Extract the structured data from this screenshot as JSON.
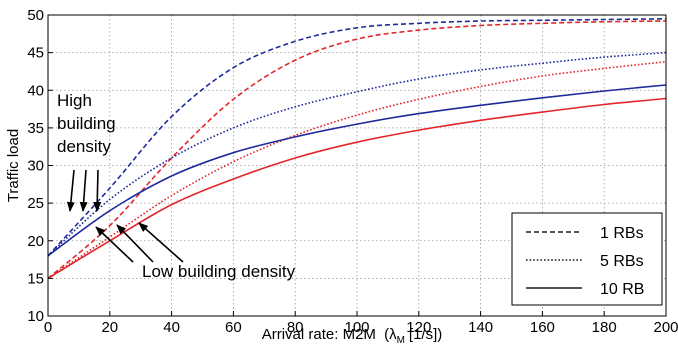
{
  "chart_data": {
    "type": "line",
    "xlabel": "Arrival rate: M2M",
    "xlabel_symbol": "λ",
    "xlabel_subscript": "M",
    "xlabel_unit": "[1/s])",
    "ylabel": "Traffic load",
    "xlim": [
      0,
      200
    ],
    "ylim": [
      10,
      50
    ],
    "xticks": [
      0,
      20,
      40,
      60,
      80,
      100,
      120,
      140,
      160,
      180,
      200
    ],
    "yticks": [
      10,
      15,
      20,
      25,
      30,
      35,
      40,
      45,
      50
    ],
    "grid": true,
    "legend_position": "bottom-right",
    "legend": [
      {
        "label": "1 RBs",
        "style": "dashed"
      },
      {
        "label": "5 RBs",
        "style": "dotted"
      },
      {
        "label": "10 RB",
        "style": "solid"
      }
    ],
    "colors": {
      "high_density": "#1f2a9c",
      "low_density": "#e3262b"
    },
    "x": [
      0,
      20,
      40,
      60,
      80,
      100,
      120,
      140,
      160,
      180,
      200
    ],
    "series": [
      {
        "group": "high building density",
        "rbs": "1 RBs",
        "style": "dashed",
        "color": "#1f2a9c",
        "values": [
          18.0,
          27.0,
          36.5,
          43.0,
          46.5,
          48.3,
          48.9,
          49.2,
          49.3,
          49.4,
          49.5
        ]
      },
      {
        "group": "low building density",
        "rbs": "1 RBs",
        "style": "dashed",
        "color": "#e3262b",
        "values": [
          15.0,
          22.0,
          31.0,
          38.8,
          44.0,
          46.8,
          48.0,
          48.6,
          48.9,
          49.1,
          49.2
        ]
      },
      {
        "group": "high building density",
        "rbs": "5 RBs",
        "style": "dotted",
        "color": "#1f2a9c",
        "values": [
          18.0,
          25.5,
          31.0,
          35.0,
          37.8,
          39.8,
          41.5,
          42.7,
          43.6,
          44.4,
          45.0
        ]
      },
      {
        "group": "low building density",
        "rbs": "5 RBs",
        "style": "dotted",
        "color": "#e3262b",
        "values": [
          15.0,
          20.5,
          26.0,
          30.5,
          34.0,
          36.7,
          38.8,
          40.5,
          41.9,
          42.9,
          43.8
        ]
      },
      {
        "group": "high building density",
        "rbs": "10 RB",
        "style": "solid",
        "color": "#1f2a9c",
        "values": [
          18.0,
          24.0,
          28.6,
          31.7,
          33.8,
          35.5,
          36.9,
          38.0,
          39.0,
          39.9,
          40.7
        ]
      },
      {
        "group": "low building density",
        "rbs": "10 RB",
        "style": "solid",
        "color": "#e3262b",
        "values": [
          15.0,
          20.0,
          24.8,
          28.2,
          31.0,
          33.1,
          34.7,
          36.0,
          37.1,
          38.1,
          38.9
        ]
      }
    ],
    "annotations": {
      "high": [
        "High",
        "building",
        "density"
      ],
      "low": "Low building density"
    }
  }
}
